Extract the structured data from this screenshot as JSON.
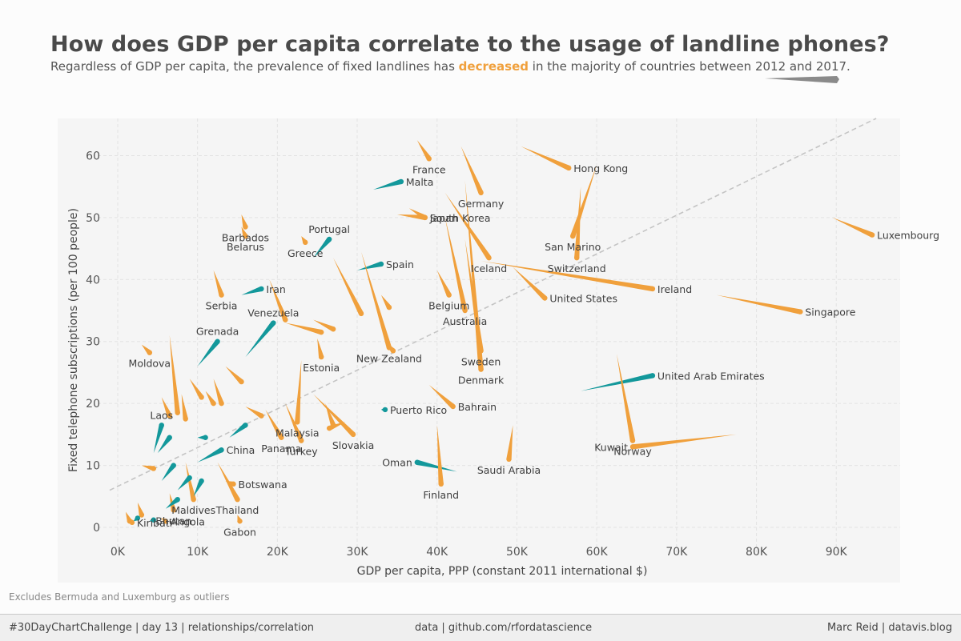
{
  "header": {
    "title": "How does GDP per capita correlate to the usage of landline phones?",
    "subtitle_before": "Regardless of GDP per capita, the prevalence of fixed landlines has ",
    "subtitle_highlight": "decreased",
    "subtitle_after": " in the majority of countries between 2012 and 2017."
  },
  "footnote": "Excludes Bermuda and Luxemburg as outliers",
  "footer": {
    "left": "#30DayChartChallenge | day 13 | relationships/correlation",
    "center": "data | github.com/rfordatascience",
    "right": "Marc Reid | datavis.blog"
  },
  "colors": {
    "decreased": "#f0a03c",
    "increased": "#13989b",
    "trend": "#c4c4c4",
    "panel": "#f5f5f5",
    "legend_wedge": "#8a8a8a"
  },
  "chart_data": {
    "type": "scatter",
    "xlabel": "GDP per capita, PPP (constant 2011 international $)",
    "ylabel": "Fixed telephone subscriptions (per 100 people)",
    "xlim": [
      -1500,
      98000
    ],
    "ylim": [
      -4,
      66
    ],
    "x_ticks": [
      {
        "value": 0,
        "label": "0K"
      },
      {
        "value": 10000,
        "label": "10K"
      },
      {
        "value": 20000,
        "label": "20K"
      },
      {
        "value": 30000,
        "label": "30K"
      },
      {
        "value": 40000,
        "label": "40K"
      },
      {
        "value": 50000,
        "label": "50K"
      },
      {
        "value": 60000,
        "label": "60K"
      },
      {
        "value": 70000,
        "label": "70K"
      },
      {
        "value": 80000,
        "label": "80K"
      },
      {
        "value": 90000,
        "label": "90K"
      }
    ],
    "y_ticks": [
      0,
      10,
      20,
      30,
      40,
      50,
      60
    ],
    "grid": true,
    "trend_line": {
      "x": [
        -1000,
        95000
      ],
      "y": [
        6.0,
        66.0
      ]
    },
    "series": [
      {
        "name": "Luxembourg",
        "x1": 89500,
        "y1": 50.0,
        "x2": 94500,
        "y2": 47.2
      },
      {
        "name": "Hong Kong",
        "x1": 50500,
        "y1": 61.5,
        "x2": 56500,
        "y2": 58.0
      },
      {
        "name": "France",
        "x1": 37500,
        "y1": 62.5,
        "x2": 39000,
        "y2": 59.5
      },
      {
        "name": "Germany",
        "x1": 43000,
        "y1": 61.5,
        "x2": 45500,
        "y2": 54.0
      },
      {
        "name": "Malta",
        "x1": 32000,
        "y1": 54.5,
        "x2": 35500,
        "y2": 55.8
      },
      {
        "name": "South Korea",
        "x1": 35000,
        "y1": 50.5,
        "x2": 38500,
        "y2": 50.0
      },
      {
        "name": "Japan",
        "x1": 36500,
        "y1": 51.5,
        "x2": 38500,
        "y2": 50.0
      },
      {
        "name": "Barbados",
        "x1": 15500,
        "y1": 50.5,
        "x2": 16000,
        "y2": 48.5
      },
      {
        "name": "Belarus",
        "x1": 15500,
        "y1": 48.5,
        "x2": 16000,
        "y2": 47.0
      },
      {
        "name": "Greece",
        "x1": 23000,
        "y1": 47.0,
        "x2": 23500,
        "y2": 46.0
      },
      {
        "name": "Portugal",
        "x1": 24500,
        "y1": 43.5,
        "x2": 26500,
        "y2": 46.5
      },
      {
        "name": "San Marino",
        "x1": 60000,
        "y1": 58.5,
        "x2": 57000,
        "y2": 47.0
      },
      {
        "name": "Switzerland",
        "x1": 58000,
        "y1": 55.0,
        "x2": 57500,
        "y2": 43.5
      },
      {
        "name": "Iceland",
        "x1": 41000,
        "y1": 54.0,
        "x2": 46500,
        "y2": 43.5
      },
      {
        "name": "Spain",
        "x1": 30000,
        "y1": 41.5,
        "x2": 33000,
        "y2": 42.5
      },
      {
        "name": "Ireland",
        "x1": 45500,
        "y1": 43.0,
        "x2": 67000,
        "y2": 38.5
      },
      {
        "name": "Singapore",
        "x1": 75000,
        "y1": 37.5,
        "x2": 85500,
        "y2": 34.8
      },
      {
        "name": "United States",
        "x1": 49500,
        "y1": 42.0,
        "x2": 53500,
        "y2": 37.0
      },
      {
        "name": "Serbia",
        "x1": 12000,
        "y1": 41.5,
        "x2": 13000,
        "y2": 37.5
      },
      {
        "name": "Iran",
        "x1": 15500,
        "y1": 37.5,
        "x2": 18000,
        "y2": 38.5
      },
      {
        "name": "Belgium",
        "x1": 40000,
        "y1": 41.5,
        "x2": 41500,
        "y2": 37.5
      },
      {
        "name": "Australia",
        "x1": 41000,
        "y1": 50.0,
        "x2": 43500,
        "y2": 35.0
      },
      {
        "name": "Denmark",
        "x1": 43500,
        "y1": 56.0,
        "x2": 45500,
        "y2": 25.5
      },
      {
        "name": "Sweden",
        "x1": 43500,
        "y1": 46.5,
        "x2": 45500,
        "y2": 28.5
      },
      {
        "name": "Grenada",
        "x1": 10000,
        "y1": 26.0,
        "x2": 12500,
        "y2": 30.0
      },
      {
        "name": "Venezuela",
        "x1": 16000,
        "y1": 27.5,
        "x2": 19500,
        "y2": 33.0
      },
      {
        "name": "New Zealand",
        "x1": 30500,
        "y1": 44.5,
        "x2": 34000,
        "y2": 29.0
      },
      {
        "name": "Estonia",
        "x1": 25000,
        "y1": 30.5,
        "x2": 25500,
        "y2": 27.5
      },
      {
        "name": "Moldova",
        "x1": 3000,
        "y1": 29.5,
        "x2": 4000,
        "y2": 28.2
      },
      {
        "name": "Malaysia",
        "x1": 23000,
        "y1": 27.0,
        "x2": 22500,
        "y2": 17.0
      },
      {
        "name": "Puerto Rico",
        "x1": 33000,
        "y1": 19.0,
        "x2": 33500,
        "y2": 19.0
      },
      {
        "name": "Bahrain",
        "x1": 39000,
        "y1": 23.0,
        "x2": 42000,
        "y2": 19.5
      },
      {
        "name": "United Arab Emirates",
        "x1": 58000,
        "y1": 22.0,
        "x2": 67000,
        "y2": 24.5
      },
      {
        "name": "Norway",
        "x1": 62500,
        "y1": 28.0,
        "x2": 64500,
        "y2": 14.0
      },
      {
        "name": "Kuwait",
        "x1": 77500,
        "y1": 15.0,
        "x2": 64500,
        "y2": 13.0
      },
      {
        "name": "Saudi Arabia",
        "x1": 49500,
        "y1": 16.5,
        "x2": 49000,
        "y2": 11.0
      },
      {
        "name": "Oman",
        "x1": 42500,
        "y1": 9.0,
        "x2": 37500,
        "y2": 10.5
      },
      {
        "name": "Finland",
        "x1": 40000,
        "y1": 16.5,
        "x2": 40500,
        "y2": 7.0
      },
      {
        "name": "Laos",
        "x1": 4500,
        "y1": 12.0,
        "x2": 5500,
        "y2": 16.5
      },
      {
        "name": "China",
        "x1": 10000,
        "y1": 10.5,
        "x2": 13000,
        "y2": 12.5
      },
      {
        "name": "Panama",
        "x1": 18500,
        "y1": 19.0,
        "x2": 20500,
        "y2": 14.5
      },
      {
        "name": "Turkey",
        "x1": 21000,
        "y1": 20.0,
        "x2": 23000,
        "y2": 14.0
      },
      {
        "name": "Slovakia",
        "x1": 24500,
        "y1": 21.5,
        "x2": 29500,
        "y2": 15.0
      },
      {
        "name": "Botswana",
        "x1": 13500,
        "y1": 7.5,
        "x2": 14500,
        "y2": 7.0
      },
      {
        "name": "Thailand",
        "x1": 12500,
        "y1": 10.5,
        "x2": 15000,
        "y2": 4.5
      },
      {
        "name": "Maldives",
        "x1": 8500,
        "y1": 10.5,
        "x2": 9500,
        "y2": 4.5
      },
      {
        "name": "Bhutan",
        "x1": 6500,
        "y1": 5.5,
        "x2": 7000,
        "y2": 2.8
      },
      {
        "name": "Gabon",
        "x1": 15000,
        "y1": 2.0,
        "x2": 15300,
        "y2": 1.0
      },
      {
        "name": "Angola",
        "x1": 5500,
        "y1": 1.5,
        "x2": 6000,
        "y2": 1.0
      },
      {
        "name": "Kiribati",
        "x1": 1500,
        "y1": 1.5,
        "x2": 1800,
        "y2": 0.8
      },
      {
        "name": "",
        "x1": 6500,
        "y1": 31.0,
        "x2": 7500,
        "y2": 18.5
      },
      {
        "name": "",
        "x1": 5500,
        "y1": 21.0,
        "x2": 6500,
        "y2": 18.0
      },
      {
        "name": "",
        "x1": 8000,
        "y1": 21.5,
        "x2": 8500,
        "y2": 17.5
      },
      {
        "name": "",
        "x1": 9000,
        "y1": 24.0,
        "x2": 10500,
        "y2": 21.0
      },
      {
        "name": "",
        "x1": 11000,
        "y1": 22.0,
        "x2": 12000,
        "y2": 20.0
      },
      {
        "name": "",
        "x1": 12000,
        "y1": 24.0,
        "x2": 13000,
        "y2": 20.0
      },
      {
        "name": "",
        "x1": 13500,
        "y1": 26.0,
        "x2": 15500,
        "y2": 23.5
      },
      {
        "name": "",
        "x1": 19000,
        "y1": 40.0,
        "x2": 21000,
        "y2": 33.5
      },
      {
        "name": "",
        "x1": 21000,
        "y1": 33.0,
        "x2": 25500,
        "y2": 31.5
      },
      {
        "name": "",
        "x1": 24500,
        "y1": 33.5,
        "x2": 27000,
        "y2": 32.0
      },
      {
        "name": "",
        "x1": 27000,
        "y1": 43.5,
        "x2": 30500,
        "y2": 34.5
      },
      {
        "name": "",
        "x1": 33000,
        "y1": 37.5,
        "x2": 34000,
        "y2": 35.5
      },
      {
        "name": "",
        "x1": 33500,
        "y1": 30.0,
        "x2": 34500,
        "y2": 28.5
      },
      {
        "name": "",
        "x1": 26000,
        "y1": 20.0,
        "x2": 27000,
        "y2": 16.5
      },
      {
        "name": "",
        "x1": 28500,
        "y1": 17.0,
        "x2": 26500,
        "y2": 16.0
      },
      {
        "name": "",
        "x1": 16000,
        "y1": 19.5,
        "x2": 18000,
        "y2": 18.0
      },
      {
        "name": "",
        "x1": 14000,
        "y1": 14.5,
        "x2": 16000,
        "y2": 16.5
      },
      {
        "name": "",
        "x1": 3000,
        "y1": 10.0,
        "x2": 4500,
        "y2": 9.5
      },
      {
        "name": "",
        "x1": 5000,
        "y1": 12.0,
        "x2": 6500,
        "y2": 14.5
      },
      {
        "name": "",
        "x1": 5500,
        "y1": 7.5,
        "x2": 7000,
        "y2": 10.0
      },
      {
        "name": "",
        "x1": 6000,
        "y1": 3.0,
        "x2": 7500,
        "y2": 4.5
      },
      {
        "name": "",
        "x1": 7500,
        "y1": 6.0,
        "x2": 9000,
        "y2": 8.0
      },
      {
        "name": "",
        "x1": 9500,
        "y1": 5.0,
        "x2": 10500,
        "y2": 7.5
      },
      {
        "name": "",
        "x1": 10000,
        "y1": 14.5,
        "x2": 11000,
        "y2": 14.5
      },
      {
        "name": "",
        "x1": 2500,
        "y1": 4.0,
        "x2": 3000,
        "y2": 2.0
      },
      {
        "name": "",
        "x1": 1000,
        "y1": 2.5,
        "x2": 1500,
        "y2": 1.0
      },
      {
        "name": "",
        "x1": 2000,
        "y1": 1.0,
        "x2": 2500,
        "y2": 1.5
      },
      {
        "name": "",
        "x1": 4000,
        "y1": 1.0,
        "x2": 4500,
        "y2": 1.2
      }
    ]
  }
}
